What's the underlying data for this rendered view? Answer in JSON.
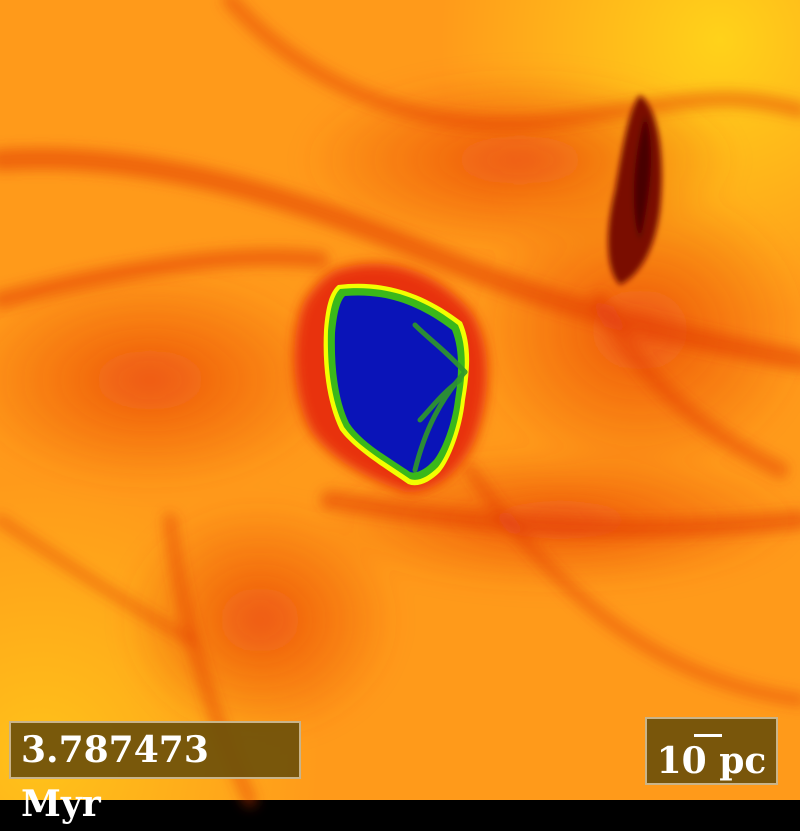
{
  "simulation": {
    "time_label": "3.787473 Myr",
    "scale_label": "10 pc"
  },
  "colors": {
    "background": "#ff9a1a",
    "filament": "#e23a0a",
    "dense_core": "#7a0a05",
    "bubble_interior": "#0a14b8",
    "bubble_edge": "#3ab81a",
    "hot_rim": "#f2ff00",
    "label_fill": "#6e500a",
    "label_border": "#c9b48a"
  }
}
